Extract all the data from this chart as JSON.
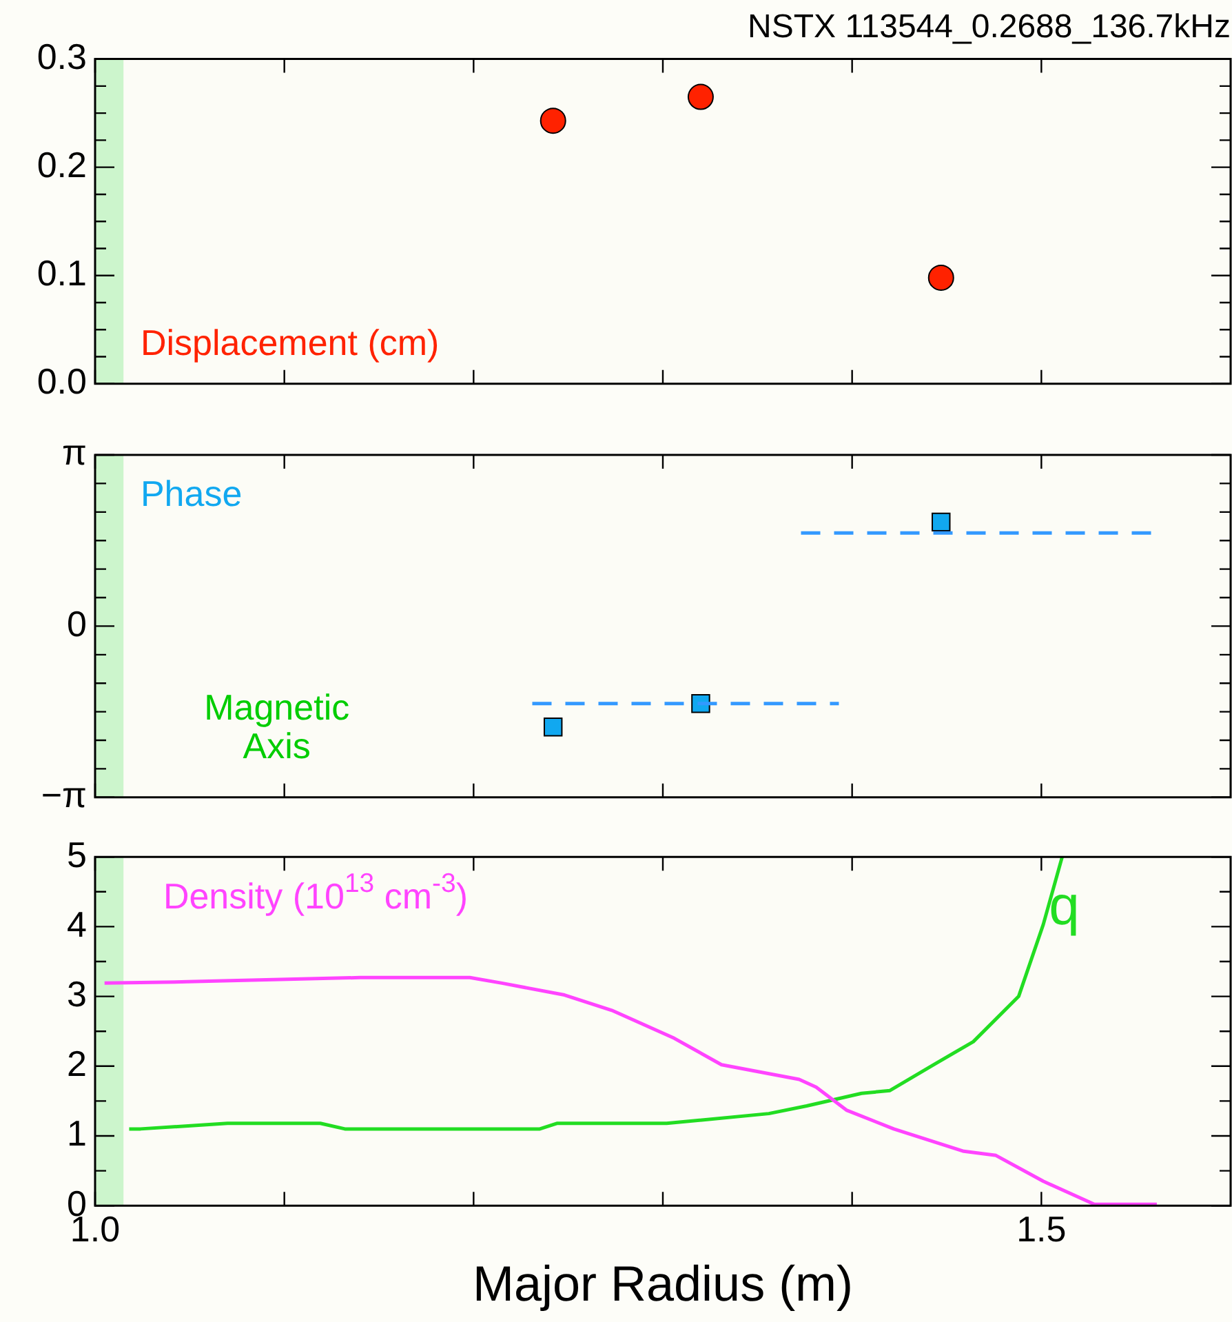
{
  "chart_data": [
    {
      "type": "scatter",
      "title": "NSTX 113544_0.2688_136.7kHz",
      "ylabel": "Displacement (cm)",
      "xlim": [
        1.0,
        1.6
      ],
      "xticks": [
        {
          "value": 1.0,
          "label": null
        },
        {
          "value": 1.1,
          "label": null
        },
        {
          "value": 1.2,
          "label": null
        },
        {
          "value": 1.3,
          "label": null
        },
        {
          "value": 1.4,
          "label": null
        },
        {
          "value": 1.5,
          "label": null
        }
      ],
      "ylim": [
        0,
        0.3
      ],
      "yticks": [
        {
          "value": 0,
          "label": "0.0"
        },
        {
          "value": 0.025,
          "label": null
        },
        {
          "value": 0.05,
          "label": null
        },
        {
          "value": 0.075,
          "label": null
        },
        0.1,
        {
          "value": 0.125,
          "label": null
        },
        {
          "value": 0.15,
          "label": null
        },
        {
          "value": 0.175,
          "label": null
        },
        0.2,
        {
          "value": 0.225,
          "label": null
        },
        {
          "value": 0.25,
          "label": null
        },
        {
          "value": 0.275,
          "label": null
        },
        0.3
      ],
      "tick_labels": "y",
      "grid": false,
      "legend": false,
      "marker": "circle",
      "bands": [
        {
          "axis": "x",
          "from": 1.0,
          "to": 1.015,
          "color": "#ccf5cc"
        }
      ],
      "series": [
        {
          "color": "#ff2200",
          "x": [
            1.242,
            1.32,
            1.447
          ],
          "values": [
            0.243,
            0.265,
            0.098
          ]
        }
      ]
    },
    {
      "type": "scatter",
      "ylabel": "Phase",
      "xlim": [
        1.0,
        1.6
      ],
      "xticks": [
        {
          "value": 1.0,
          "label": null
        },
        {
          "value": 1.1,
          "label": null
        },
        {
          "value": 1.2,
          "label": null
        },
        {
          "value": 1.3,
          "label": null
        },
        {
          "value": 1.4,
          "label": null
        },
        {
          "value": 1.5,
          "label": null
        }
      ],
      "ylim": [
        -3.1416,
        3.1416
      ],
      "yticks": [
        {
          "value": -3.1416,
          "label": "−π"
        },
        {
          "value": -2.618,
          "label": null
        },
        {
          "value": -2.094,
          "label": null
        },
        {
          "value": -1.571,
          "label": null
        },
        {
          "value": -1.047,
          "label": null
        },
        {
          "value": -0.524,
          "label": null
        },
        0,
        {
          "value": 0.524,
          "label": null
        },
        {
          "value": 1.047,
          "label": null
        },
        {
          "value": 1.571,
          "label": null
        },
        {
          "value": 2.094,
          "label": null
        },
        {
          "value": 2.618,
          "label": null
        },
        {
          "value": 3.1416,
          "label": "π"
        }
      ],
      "tick_labels": "y",
      "grid": false,
      "legend": false,
      "marker": "square",
      "bands": [
        {
          "axis": "x",
          "from": 1.0,
          "to": 1.015,
          "color": "#ccf5cc",
          "label": "Magnetic Axis"
        }
      ],
      "series": [
        {
          "type": "line",
          "color": "#3399ff",
          "marker": "none",
          "line_style": "dashed",
          "x": [
            1.231,
            1.393
          ],
          "values": [
            -1.42,
            -1.42
          ]
        },
        {
          "type": "line",
          "color": "#3399ff",
          "marker": "none",
          "line_style": "dashed",
          "x": [
            1.373,
            1.558
          ],
          "values": [
            1.71,
            1.71
          ]
        },
        {
          "color": "#11a8f0",
          "x": [
            1.242,
            1.32,
            1.447
          ],
          "values": [
            -1.85,
            -1.42,
            1.91
          ]
        }
      ]
    },
    {
      "type": "line",
      "xlabel": "Major Radius (m)",
      "xlim": [
        1.0,
        1.6
      ],
      "xticks": [
        {
          "value": 1.0,
          "label": "1.0"
        },
        {
          "value": 1.1,
          "label": null
        },
        {
          "value": 1.2,
          "label": null
        },
        {
          "value": 1.3,
          "label": null
        },
        {
          "value": 1.4,
          "label": null
        },
        {
          "value": 1.5,
          "label": "1.5"
        }
      ],
      "ylim": [
        0,
        5
      ],
      "yticks": [
        0,
        {
          "value": 0.5,
          "label": null
        },
        1,
        {
          "value": 1.5,
          "label": null
        },
        2,
        {
          "value": 2.5,
          "label": null
        },
        3,
        {
          "value": 3.5,
          "label": null
        },
        4,
        {
          "value": 4.5,
          "label": null
        },
        5
      ],
      "grid": false,
      "legend": false,
      "marker": "none",
      "line_style": "solid",
      "bands": [
        {
          "axis": "x",
          "from": 1.0,
          "to": 1.015,
          "color": "#ccf5cc"
        }
      ],
      "series": [
        {
          "name": "Density (10$^{13}$ cm$^{-3}$)",
          "color": "#ff44ff",
          "x": [
            1.005,
            1.049,
            1.14,
            1.198,
            1.215,
            1.248,
            1.273,
            1.306,
            1.331,
            1.372,
            1.381,
            1.397,
            1.422,
            1.459,
            1.476,
            1.501,
            1.528,
            1.561
          ],
          "values": [
            3.19,
            3.21,
            3.27,
            3.27,
            3.19,
            3.02,
            2.8,
            2.4,
            2.02,
            1.81,
            1.7,
            1.37,
            1.1,
            0.78,
            0.72,
            0.35,
            0.02,
            0.02
          ]
        },
        {
          "name": "q",
          "color": "#22dd22",
          "x": [
            1.018,
            1.024,
            1.07,
            1.119,
            1.132,
            1.235,
            1.244,
            1.302,
            1.356,
            1.376,
            1.405,
            1.42,
            1.443,
            1.464,
            1.488,
            1.501,
            1.511
          ],
          "values": [
            1.1,
            1.1,
            1.18,
            1.18,
            1.1,
            1.1,
            1.18,
            1.18,
            1.32,
            1.43,
            1.61,
            1.65,
            2.02,
            2.35,
            3.0,
            4.03,
            5.0
          ]
        }
      ]
    }
  ]
}
